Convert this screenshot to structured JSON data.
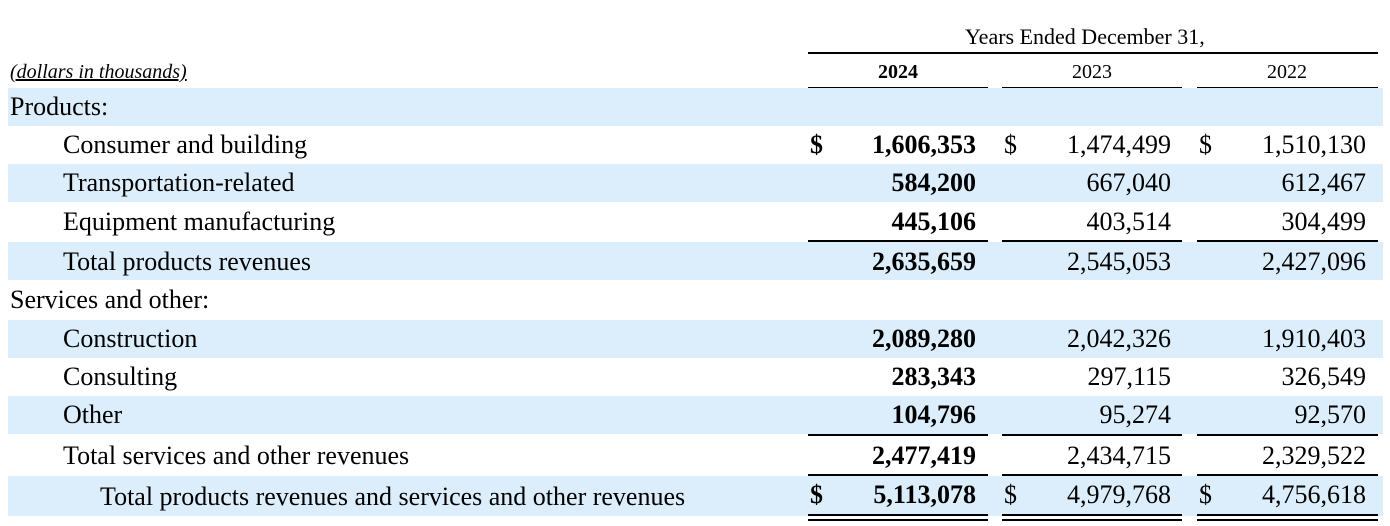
{
  "header": {
    "period_title": "Years Ended December 31,",
    "units_label": "(dollars in thousands)",
    "years": [
      "2024",
      "2023",
      "2022"
    ]
  },
  "currency_symbol": "$",
  "sections": {
    "products": {
      "title": "Products:",
      "rows": [
        {
          "label": "Consumer and building",
          "values": [
            "1,606,353",
            "1,474,499",
            "1,510,130"
          ]
        },
        {
          "label": "Transportation-related",
          "values": [
            "584,200",
            "667,040",
            "612,467"
          ]
        },
        {
          "label": "Equipment manufacturing",
          "values": [
            "445,106",
            "403,514",
            "304,499"
          ]
        }
      ],
      "total": {
        "label": "Total products revenues",
        "values": [
          "2,635,659",
          "2,545,053",
          "2,427,096"
        ]
      }
    },
    "services": {
      "title": "Services and other:",
      "rows": [
        {
          "label": "Construction",
          "values": [
            "2,089,280",
            "2,042,326",
            "1,910,403"
          ]
        },
        {
          "label": "Consulting",
          "values": [
            "283,343",
            "297,115",
            "326,549"
          ]
        },
        {
          "label": "Other",
          "values": [
            "104,796",
            "95,274",
            "92,570"
          ]
        }
      ],
      "total": {
        "label": "Total services and other revenues",
        "values": [
          "2,477,419",
          "2,434,715",
          "2,329,522"
        ]
      }
    }
  },
  "grand_total": {
    "label": "Total products revenues and services and other revenues",
    "values": [
      "5,113,078",
      "4,979,768",
      "4,756,618"
    ]
  }
}
